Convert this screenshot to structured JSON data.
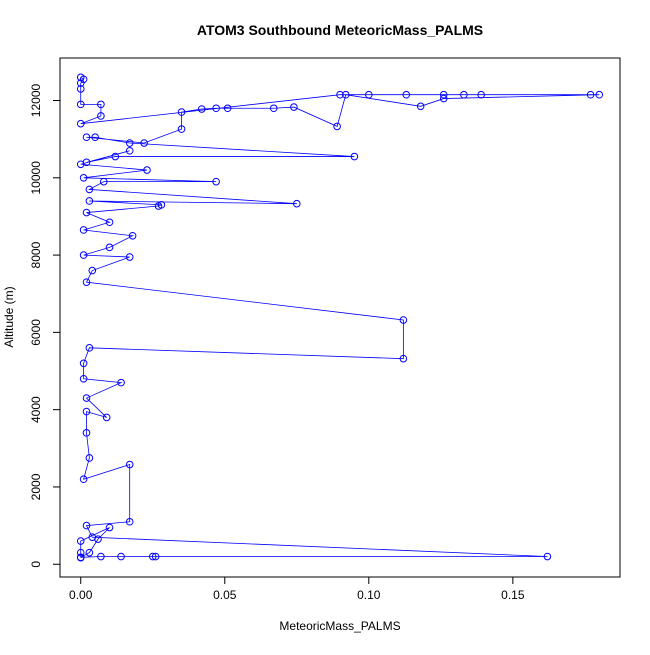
{
  "chart_data": {
    "type": "line",
    "title": "ATOM3 Southbound MeteoricMass_PALMS",
    "x_label": "MeteoricMass_PALMS",
    "y_label": "Altitude (m)",
    "color": "#0000ff",
    "xlim": [
      -0.0072,
      0.1872
    ],
    "ylim": [
      -330,
      13100
    ],
    "xticks": [
      {
        "value": 0,
        "label": "0.00"
      },
      {
        "value": 0.05,
        "label": "0.05"
      },
      {
        "value": 0.1,
        "label": "0.10"
      },
      {
        "value": 0.15,
        "label": "0.15"
      }
    ],
    "yticks": [
      0,
      2000,
      4000,
      6000,
      8000,
      10000,
      12000
    ],
    "series": [
      {
        "name": "MeteoricMass_PALMS",
        "color": "#0000ff",
        "x": [
          0,
          0.001,
          0,
          0,
          0,
          0.007,
          0.007,
          0,
          0.09,
          0.1,
          0.113,
          0.126,
          0.133,
          0.139,
          0.177,
          0.18,
          0.126,
          0.118,
          0.092,
          0.089,
          0.074,
          0.067,
          0.051,
          0.047,
          0.042,
          0.035,
          0.035,
          0.022,
          0.002,
          0.005,
          0.017,
          0.095,
          0.012,
          0.002,
          0.017,
          0,
          0.023,
          0.001,
          0.047,
          0.008,
          0.003,
          0.075,
          0.003,
          0.028,
          0.027,
          0.002,
          0.01,
          0.001,
          0.018,
          0.01,
          0.001,
          0.017,
          0.004,
          0.002,
          0.112,
          0.112,
          0.003,
          0.001,
          0.001,
          0.014,
          0.002,
          0.009,
          0.002,
          0.002,
          0.003,
          0.001,
          0.017,
          0.017,
          0.002,
          0.004,
          0.162,
          0.026,
          0.025,
          0.014,
          0.007,
          0,
          0.003,
          0.006,
          0.01,
          0,
          0,
          0
        ],
        "values": [
          12600,
          12550,
          12450,
          12300,
          11900,
          11900,
          11600,
          11400,
          12150,
          12150,
          12150,
          12150,
          12150,
          12150,
          12150,
          12150,
          12050,
          11850,
          12150,
          11330,
          11830,
          11800,
          11800,
          11800,
          11780,
          11700,
          11260,
          10900,
          11050,
          11050,
          10900,
          10550,
          10550,
          10400,
          10700,
          10350,
          10200,
          10000,
          9900,
          9900,
          9700,
          9330,
          9400,
          9300,
          9270,
          9100,
          8850,
          8650,
          8500,
          8200,
          8000,
          7950,
          7600,
          7300,
          6320,
          5320,
          5600,
          5200,
          4800,
          4700,
          4300,
          3800,
          3950,
          3400,
          2750,
          2200,
          2580,
          1100,
          1000,
          700,
          200,
          200,
          200,
          200,
          200,
          180,
          300,
          650,
          950,
          600,
          300,
          170
        ]
      }
    ]
  }
}
